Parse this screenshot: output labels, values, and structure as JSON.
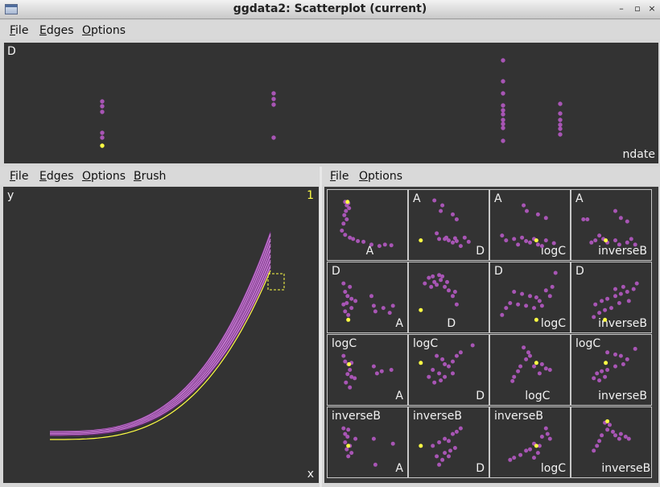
{
  "window": {
    "title": "ggdata2: Scatterplot (current)"
  },
  "top_display": {
    "menus": [
      "File",
      "Edges",
      "Options"
    ],
    "y_label": "D",
    "x_label": "ndate",
    "points": [
      {
        "x": 127,
        "y": 126
      },
      {
        "x": 127,
        "y": 132
      },
      {
        "x": 127,
        "y": 139
      },
      {
        "x": 127,
        "y": 165
      },
      {
        "x": 127,
        "y": 171
      },
      {
        "x": 340,
        "y": 116
      },
      {
        "x": 340,
        "y": 123
      },
      {
        "x": 340,
        "y": 130
      },
      {
        "x": 340,
        "y": 171
      },
      {
        "x": 625,
        "y": 75
      },
      {
        "x": 625,
        "y": 101
      },
      {
        "x": 625,
        "y": 116
      },
      {
        "x": 625,
        "y": 131
      },
      {
        "x": 625,
        "y": 137
      },
      {
        "x": 625,
        "y": 142
      },
      {
        "x": 625,
        "y": 149
      },
      {
        "x": 625,
        "y": 154
      },
      {
        "x": 625,
        "y": 159
      },
      {
        "x": 625,
        "y": 175
      },
      {
        "x": 696,
        "y": 129
      },
      {
        "x": 696,
        "y": 141
      },
      {
        "x": 696,
        "y": 149
      },
      {
        "x": 696,
        "y": 155
      },
      {
        "x": 696,
        "y": 160
      },
      {
        "x": 696,
        "y": 167
      }
    ],
    "highlight_points": [
      {
        "x": 127,
        "y": 181
      }
    ]
  },
  "curve_display": {
    "menus": [
      "File",
      "Edges",
      "Options",
      "Brush"
    ],
    "y_label": "y",
    "x_label": "x",
    "count_label": "1"
  },
  "matrix_display": {
    "menus": [
      "File",
      "Options"
    ],
    "variables": [
      "A",
      "D",
      "logC",
      "inverseB"
    ],
    "cells": [
      {
        "row_label": "",
        "col_label": "A",
        "pts": [
          [
            0.22,
            0.17
          ],
          [
            0.24,
            0.22
          ],
          [
            0.26,
            0.19
          ],
          [
            0.23,
            0.3
          ],
          [
            0.21,
            0.36
          ],
          [
            0.2,
            0.48
          ],
          [
            0.18,
            0.58
          ],
          [
            0.22,
            0.64
          ],
          [
            0.28,
            0.68
          ],
          [
            0.32,
            0.7
          ],
          [
            0.38,
            0.73
          ],
          [
            0.45,
            0.74
          ],
          [
            0.55,
            0.78
          ],
          [
            0.65,
            0.8
          ],
          [
            0.72,
            0.78
          ],
          [
            0.8,
            0.79
          ],
          [
            0.27,
            0.26
          ],
          [
            0.24,
            0.42
          ]
        ],
        "hl": [
          [
            0.25,
            0.17
          ]
        ]
      },
      {
        "row_label": "A",
        "col_label": "D",
        "pts": [
          [
            0.32,
            0.15
          ],
          [
            0.4,
            0.3
          ],
          [
            0.42,
            0.22
          ],
          [
            0.55,
            0.35
          ],
          [
            0.6,
            0.42
          ],
          [
            0.35,
            0.62
          ],
          [
            0.45,
            0.7
          ],
          [
            0.5,
            0.72
          ],
          [
            0.55,
            0.75
          ],
          [
            0.6,
            0.73
          ],
          [
            0.65,
            0.8
          ],
          [
            0.7,
            0.68
          ],
          [
            0.75,
            0.74
          ],
          [
            0.38,
            0.7
          ],
          [
            0.47,
            0.68
          ],
          [
            0.58,
            0.69
          ]
        ],
        "hl": [
          [
            0.15,
            0.72
          ]
        ]
      },
      {
        "row_label": "A",
        "col_label": "logC",
        "pts": [
          [
            0.42,
            0.22
          ],
          [
            0.46,
            0.3
          ],
          [
            0.6,
            0.35
          ],
          [
            0.7,
            0.4
          ],
          [
            0.15,
            0.65
          ],
          [
            0.2,
            0.72
          ],
          [
            0.3,
            0.7
          ],
          [
            0.4,
            0.68
          ],
          [
            0.45,
            0.73
          ],
          [
            0.5,
            0.75
          ],
          [
            0.55,
            0.7
          ],
          [
            0.6,
            0.78
          ],
          [
            0.65,
            0.8
          ],
          [
            0.7,
            0.72
          ],
          [
            0.8,
            0.76
          ],
          [
            0.35,
            0.78
          ]
        ],
        "hl": [
          [
            0.58,
            0.72
          ]
        ]
      },
      {
        "row_label": "A",
        "col_label": "inverseB",
        "pts": [
          [
            0.15,
            0.42
          ],
          [
            0.2,
            0.42
          ],
          [
            0.55,
            0.3
          ],
          [
            0.62,
            0.4
          ],
          [
            0.7,
            0.45
          ],
          [
            0.35,
            0.65
          ],
          [
            0.4,
            0.7
          ],
          [
            0.3,
            0.72
          ],
          [
            0.45,
            0.75
          ],
          [
            0.55,
            0.72
          ],
          [
            0.6,
            0.78
          ],
          [
            0.7,
            0.75
          ],
          [
            0.75,
            0.7
          ],
          [
            0.8,
            0.78
          ],
          [
            0.25,
            0.75
          ]
        ],
        "hl": [
          [
            0.43,
            0.72
          ]
        ]
      },
      {
        "row_label": "D",
        "col_label": "A",
        "pts": [
          [
            0.2,
            0.3
          ],
          [
            0.28,
            0.35
          ],
          [
            0.22,
            0.42
          ],
          [
            0.25,
            0.48
          ],
          [
            0.3,
            0.52
          ],
          [
            0.24,
            0.58
          ],
          [
            0.2,
            0.6
          ],
          [
            0.3,
            0.65
          ],
          [
            0.22,
            0.7
          ],
          [
            0.26,
            0.75
          ],
          [
            0.55,
            0.48
          ],
          [
            0.58,
            0.62
          ],
          [
            0.6,
            0.7
          ],
          [
            0.7,
            0.65
          ],
          [
            0.78,
            0.72
          ],
          [
            0.82,
            0.62
          ],
          [
            0.35,
            0.55
          ]
        ],
        "hl": [
          [
            0.26,
            0.82
          ]
        ]
      },
      {
        "row_label": "",
        "col_label": "D",
        "pts": [
          [
            0.2,
            0.3
          ],
          [
            0.25,
            0.22
          ],
          [
            0.3,
            0.2
          ],
          [
            0.32,
            0.28
          ],
          [
            0.38,
            0.18
          ],
          [
            0.42,
            0.2
          ],
          [
            0.45,
            0.35
          ],
          [
            0.5,
            0.4
          ],
          [
            0.55,
            0.48
          ],
          [
            0.28,
            0.35
          ],
          [
            0.35,
            0.32
          ],
          [
            0.4,
            0.25
          ],
          [
            0.48,
            0.28
          ],
          [
            0.6,
            0.6
          ],
          [
            0.58,
            0.42
          ]
        ],
        "hl": [
          [
            0.15,
            0.68
          ]
        ]
      },
      {
        "row_label": "D",
        "col_label": "logC",
        "pts": [
          [
            0.3,
            0.42
          ],
          [
            0.4,
            0.45
          ],
          [
            0.5,
            0.48
          ],
          [
            0.58,
            0.5
          ],
          [
            0.62,
            0.55
          ],
          [
            0.7,
            0.4
          ],
          [
            0.78,
            0.35
          ],
          [
            0.82,
            0.15
          ],
          [
            0.25,
            0.58
          ],
          [
            0.35,
            0.6
          ],
          [
            0.45,
            0.62
          ],
          [
            0.55,
            0.65
          ],
          [
            0.65,
            0.62
          ],
          [
            0.75,
            0.48
          ],
          [
            0.2,
            0.65
          ],
          [
            0.15,
            0.75
          ]
        ],
        "hl": [
          [
            0.58,
            0.82
          ]
        ]
      },
      {
        "row_label": "D",
        "col_label": "inverseB",
        "pts": [
          [
            0.3,
            0.6
          ],
          [
            0.38,
            0.55
          ],
          [
            0.45,
            0.52
          ],
          [
            0.55,
            0.48
          ],
          [
            0.62,
            0.45
          ],
          [
            0.7,
            0.42
          ],
          [
            0.78,
            0.38
          ],
          [
            0.82,
            0.3
          ],
          [
            0.72,
            0.55
          ],
          [
            0.6,
            0.58
          ],
          [
            0.5,
            0.65
          ],
          [
            0.42,
            0.68
          ],
          [
            0.35,
            0.72
          ],
          [
            0.28,
            0.78
          ],
          [
            0.55,
            0.38
          ],
          [
            0.65,
            0.35
          ]
        ],
        "hl": [
          [
            0.42,
            0.82
          ]
        ]
      },
      {
        "row_label": "logC",
        "col_label": "A",
        "pts": [
          [
            0.2,
            0.3
          ],
          [
            0.22,
            0.38
          ],
          [
            0.26,
            0.42
          ],
          [
            0.28,
            0.5
          ],
          [
            0.25,
            0.56
          ],
          [
            0.3,
            0.6
          ],
          [
            0.23,
            0.68
          ],
          [
            0.28,
            0.75
          ],
          [
            0.58,
            0.45
          ],
          [
            0.62,
            0.55
          ],
          [
            0.68,
            0.52
          ],
          [
            0.8,
            0.5
          ],
          [
            0.34,
            0.62
          ],
          [
            0.3,
            0.4
          ]
        ],
        "hl": [
          [
            0.27,
            0.42
          ]
        ]
      },
      {
        "row_label": "logC",
        "col_label": "D",
        "pts": [
          [
            0.35,
            0.3
          ],
          [
            0.42,
            0.35
          ],
          [
            0.45,
            0.42
          ],
          [
            0.5,
            0.45
          ],
          [
            0.55,
            0.38
          ],
          [
            0.6,
            0.3
          ],
          [
            0.65,
            0.25
          ],
          [
            0.8,
            0.15
          ],
          [
            0.3,
            0.5
          ],
          [
            0.38,
            0.55
          ],
          [
            0.45,
            0.6
          ],
          [
            0.55,
            0.55
          ],
          [
            0.25,
            0.6
          ],
          [
            0.32,
            0.68
          ],
          [
            0.4,
            0.65
          ]
        ],
        "hl": [
          [
            0.15,
            0.4
          ]
        ]
      },
      {
        "row_label": "",
        "col_label": "logC",
        "pts": [
          [
            0.42,
            0.18
          ],
          [
            0.48,
            0.25
          ],
          [
            0.5,
            0.3
          ],
          [
            0.45,
            0.35
          ],
          [
            0.38,
            0.45
          ],
          [
            0.35,
            0.52
          ],
          [
            0.3,
            0.6
          ],
          [
            0.28,
            0.66
          ],
          [
            0.65,
            0.42
          ],
          [
            0.7,
            0.48
          ],
          [
            0.75,
            0.5
          ],
          [
            0.62,
            0.55
          ],
          [
            0.55,
            0.45
          ]
        ],
        "hl": [
          [
            0.58,
            0.4
          ]
        ]
      },
      {
        "row_label": "logC",
        "col_label": "inverseB",
        "pts": [
          [
            0.45,
            0.25
          ],
          [
            0.55,
            0.28
          ],
          [
            0.62,
            0.3
          ],
          [
            0.7,
            0.35
          ],
          [
            0.8,
            0.2
          ],
          [
            0.65,
            0.42
          ],
          [
            0.55,
            0.45
          ],
          [
            0.45,
            0.5
          ],
          [
            0.38,
            0.52
          ],
          [
            0.32,
            0.55
          ],
          [
            0.28,
            0.62
          ],
          [
            0.35,
            0.65
          ],
          [
            0.42,
            0.6
          ]
        ],
        "hl": [
          [
            0.43,
            0.4
          ]
        ]
      },
      {
        "row_label": "inverseB",
        "col_label": "A",
        "pts": [
          [
            0.2,
            0.3
          ],
          [
            0.26,
            0.32
          ],
          [
            0.25,
            0.42
          ],
          [
            0.22,
            0.5
          ],
          [
            0.28,
            0.55
          ],
          [
            0.24,
            0.6
          ],
          [
            0.3,
            0.65
          ],
          [
            0.26,
            0.7
          ],
          [
            0.58,
            0.45
          ],
          [
            0.6,
            0.82
          ],
          [
            0.82,
            0.52
          ],
          [
            0.35,
            0.45
          ],
          [
            0.22,
            0.38
          ]
        ],
        "hl": [
          [
            0.26,
            0.55
          ]
        ]
      },
      {
        "row_label": "inverseB",
        "col_label": "D",
        "pts": [
          [
            0.3,
            0.55
          ],
          [
            0.38,
            0.5
          ],
          [
            0.45,
            0.45
          ],
          [
            0.5,
            0.48
          ],
          [
            0.55,
            0.38
          ],
          [
            0.6,
            0.35
          ],
          [
            0.65,
            0.3
          ],
          [
            0.52,
            0.62
          ],
          [
            0.45,
            0.65
          ],
          [
            0.35,
            0.7
          ],
          [
            0.42,
            0.75
          ],
          [
            0.38,
            0.82
          ],
          [
            0.5,
            0.7
          ],
          [
            0.58,
            0.58
          ]
        ],
        "hl": [
          [
            0.15,
            0.55
          ]
        ]
      },
      {
        "row_label": "inverseB",
        "col_label": "logC",
        "pts": [
          [
            0.7,
            0.3
          ],
          [
            0.72,
            0.38
          ],
          [
            0.75,
            0.45
          ],
          [
            0.65,
            0.42
          ],
          [
            0.55,
            0.52
          ],
          [
            0.5,
            0.6
          ],
          [
            0.45,
            0.62
          ],
          [
            0.38,
            0.68
          ],
          [
            0.3,
            0.72
          ],
          [
            0.25,
            0.75
          ],
          [
            0.6,
            0.65
          ],
          [
            0.55,
            0.72
          ],
          [
            0.62,
            0.55
          ]
        ],
        "hl": [
          [
            0.58,
            0.55
          ]
        ]
      },
      {
        "row_label": "",
        "col_label": "inverseB",
        "pts": [
          [
            0.42,
            0.22
          ],
          [
            0.48,
            0.25
          ],
          [
            0.45,
            0.32
          ],
          [
            0.52,
            0.35
          ],
          [
            0.55,
            0.4
          ],
          [
            0.62,
            0.38
          ],
          [
            0.68,
            0.42
          ],
          [
            0.72,
            0.45
          ],
          [
            0.38,
            0.4
          ],
          [
            0.35,
            0.48
          ],
          [
            0.32,
            0.55
          ],
          [
            0.28,
            0.62
          ],
          [
            0.6,
            0.45
          ]
        ],
        "hl": [
          [
            0.45,
            0.2
          ]
        ]
      }
    ]
  },
  "colors": {
    "plot_background": "#333333",
    "point": "#a855b5",
    "highlight": "#ffff44",
    "curve_light": "#c57ad0",
    "curve_dark": "#6a2a78"
  }
}
